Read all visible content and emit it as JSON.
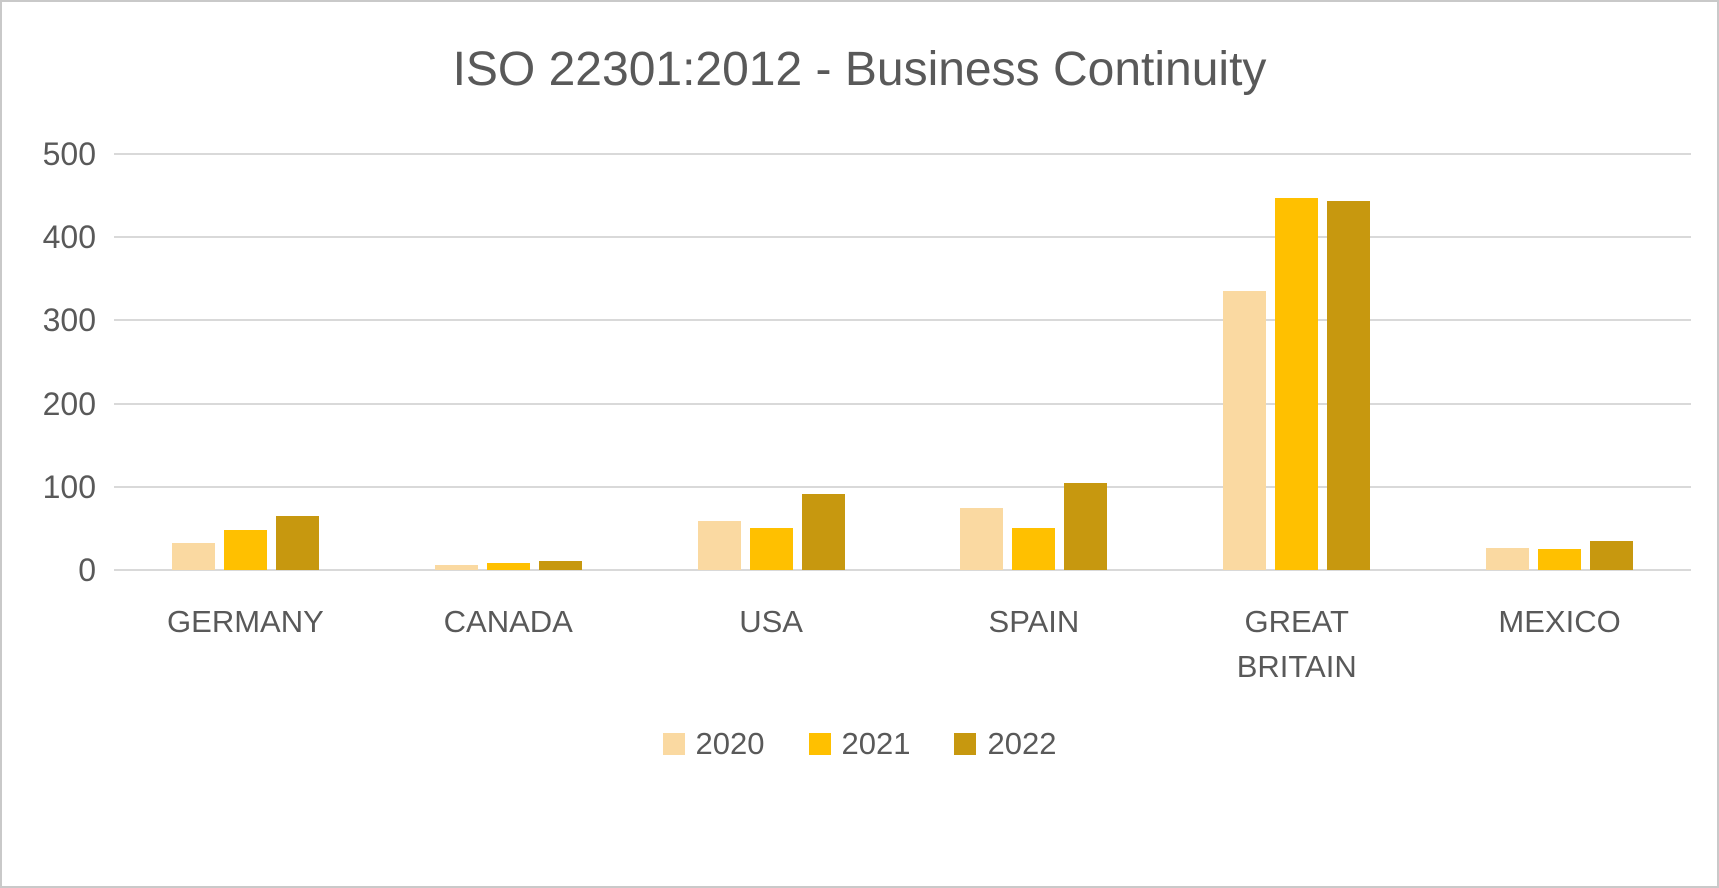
{
  "title": "ISO 22301:2012 - Business Continuity",
  "colors": {
    "series_2020": "#fad9a1",
    "series_2021": "#ffc000",
    "series_2022": "#c7980f",
    "gridline": "#d9d9d9",
    "text": "#595959"
  },
  "chart_data": {
    "type": "bar",
    "title": "ISO 22301:2012 - Business Continuity",
    "categories": [
      "GERMANY",
      "CANADA",
      "USA",
      "SPAIN",
      "GREAT BRITAIN",
      "MEXICO"
    ],
    "series": [
      {
        "name": "2020",
        "color": "#fad9a1",
        "values": [
          33,
          6,
          59,
          75,
          335,
          27
        ]
      },
      {
        "name": "2021",
        "color": "#ffc000",
        "values": [
          48,
          9,
          51,
          51,
          447,
          25
        ]
      },
      {
        "name": "2022",
        "color": "#c7980f",
        "values": [
          65,
          11,
          91,
          105,
          444,
          35
        ]
      }
    ],
    "xlabel": "",
    "ylabel": "",
    "ylim": [
      0,
      500
    ],
    "yticks": [
      0,
      100,
      200,
      300,
      400,
      500
    ],
    "grid": true,
    "legend_position": "bottom"
  }
}
